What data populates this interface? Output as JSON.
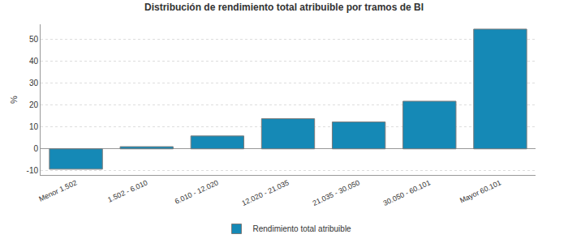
{
  "chart_data": {
    "type": "bar",
    "title": "Distribución de rendimiento total atribuible por tramos de BI",
    "ylabel": "%",
    "categories": [
      "Menor 1.502",
      "1.502 - 6.010",
      "6.010 - 12.020",
      "12.020 - 21.035",
      "21.035 - 30.050",
      "30.050 - 60.101",
      "Mayor 60.101"
    ],
    "series": [
      {
        "name": "Rendimiento total atribuible",
        "color": "#1589b6",
        "values": [
          -9.3,
          1.0,
          5.9,
          13.8,
          12.3,
          21.8,
          54.8
        ]
      }
    ],
    "ylim": [
      -12,
      57
    ],
    "yticks": [
      -10,
      0,
      10,
      20,
      30,
      40,
      50
    ],
    "grid": true,
    "legend": "bottom"
  }
}
